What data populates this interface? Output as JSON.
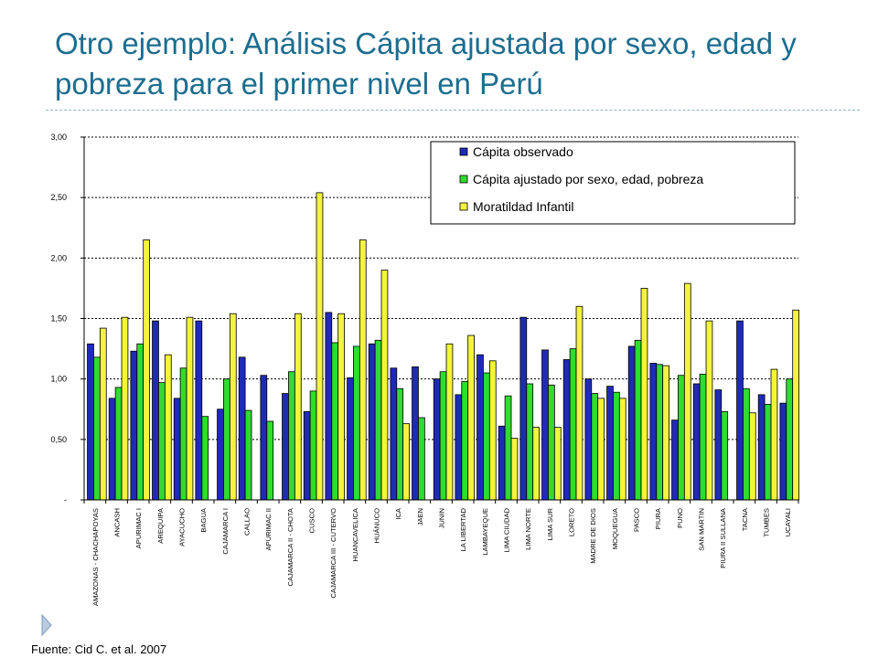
{
  "slide": {
    "title": "Otro ejemplo: Análisis Cápita ajustada por sexo, edad y pobreza para el primer nivel en Perú",
    "source": "Fuente: Cid C. et al. 2007",
    "title_color": "#1c6d8f"
  },
  "chart_data": {
    "type": "bar",
    "title": "",
    "xlabel": "",
    "ylabel": "",
    "ylim": [
      0,
      3
    ],
    "yticks": [
      0,
      0.5,
      1,
      1.5,
      2,
      2.5,
      3
    ],
    "ytick_labels": [
      "-",
      "0,50",
      "1,00",
      "1,50",
      "2,00",
      "2,50",
      "3,00"
    ],
    "grid": true,
    "legend_position": "top-right",
    "categories": [
      "AMAZONAS - CHACHAPOYAS",
      "ANCASH",
      "APURIMAC I",
      "AREQUIPA",
      "AYACUCHO",
      "BAGUA",
      "CAJAMARCA I",
      "CALLAO",
      "APURIMAC II",
      "CAJAMARCA II - CHOTA",
      "CUSCO",
      "CAJAMARCA III - CUTERVO",
      "HUANCAVELICA",
      "HUÁNUCO",
      "ICA",
      "JAEN",
      "JUNIN",
      "LA LIBERTAD",
      "LAMBAYEQUE",
      "LIMA CIUDAD",
      "LIMA NORTE",
      "LIMA SUR",
      "LORETO",
      "MADRE DE DIOS",
      "MOQUEGUA",
      "PASCO",
      "PIURA",
      "PUNO",
      "SAN MARTIN",
      "PIURA II SULLANA",
      "TACNA",
      "TUMBES",
      "UCAYALI"
    ],
    "series": [
      {
        "name": "Cápita observado",
        "color": "#1f2bb8",
        "values": [
          1.29,
          0.84,
          1.23,
          1.48,
          0.84,
          1.48,
          0.75,
          1.18,
          1.03,
          0.88,
          0.73,
          1.55,
          1.01,
          1.29,
          1.09,
          1.1,
          1.0,
          0.87,
          1.2,
          0.61,
          1.51,
          1.24,
          1.16,
          1.0,
          0.94,
          1.27,
          1.13,
          0.66,
          0.96,
          0.91,
          1.48,
          0.87,
          0.8
        ]
      },
      {
        "name": "Cápita ajustado por sexo, edad, pobreza",
        "color": "#2fdc2f",
        "values": [
          1.18,
          0.93,
          1.29,
          0.97,
          1.09,
          0.69,
          1.0,
          0.74,
          0.65,
          1.06,
          0.9,
          1.3,
          1.27,
          1.32,
          0.92,
          0.68,
          1.06,
          0.98,
          1.05,
          0.86,
          0.96,
          0.95,
          1.25,
          0.88,
          0.89,
          1.32,
          1.12,
          1.03,
          1.04,
          0.73,
          0.92,
          0.79,
          1.0
        ]
      },
      {
        "name": "Moratildad Infantil",
        "color": "#f4f43c",
        "values": [
          1.42,
          1.51,
          2.15,
          1.2,
          1.51,
          null,
          1.54,
          null,
          null,
          1.54,
          2.54,
          1.54,
          2.15,
          1.9,
          0.63,
          null,
          1.29,
          1.36,
          1.15,
          0.51,
          0.6,
          0.6,
          1.6,
          0.84,
          0.84,
          1.75,
          1.11,
          1.79,
          1.48,
          null,
          0.72,
          1.08,
          1.57
        ]
      }
    ]
  }
}
